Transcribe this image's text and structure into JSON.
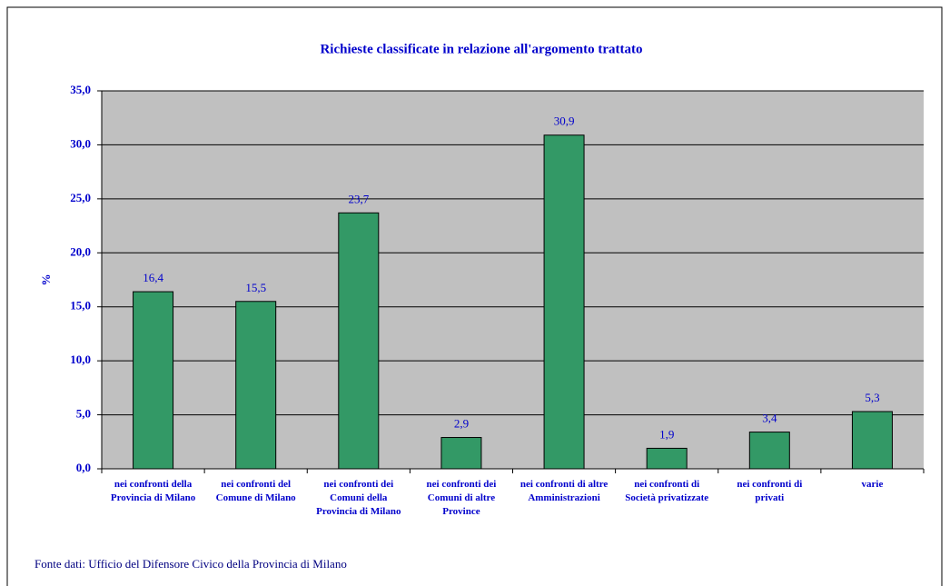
{
  "chart_data": {
    "type": "bar",
    "title": "Richieste classificate in relazione all'argomento trattato",
    "y_label": "%",
    "source": "Fonte dati: Ufficio del Difensore Civico della Provincia di Milano",
    "categories": [
      "nei confronti della Provincia di Milano",
      "nei confronti del Comune di Milano",
      "nei confronti dei Comuni della Provincia di Milano",
      "nei confronti dei Comuni di altre Province",
      "nei confronti di altre Amministrazioni",
      "nei confronti di Società privatizzate",
      "nei confronti di privati",
      "varie"
    ],
    "values": [
      16.4,
      15.5,
      23.7,
      2.9,
      30.9,
      1.9,
      3.4,
      5.3
    ],
    "value_labels": [
      "16,4",
      "15,5",
      "23,7",
      "2,9",
      "30,9",
      "1,9",
      "3,4",
      "5,3"
    ],
    "color": "#339966",
    "ylim": [
      0,
      35
    ],
    "yticks": [
      {
        "value": 0,
        "label": "0,0"
      },
      {
        "value": 5,
        "label": "5,0"
      },
      {
        "value": 10,
        "label": "10,0"
      },
      {
        "value": 15,
        "label": "15,0"
      },
      {
        "value": 20,
        "label": "20,0"
      },
      {
        "value": 25,
        "label": "25,0"
      },
      {
        "value": 30,
        "label": "30,0"
      },
      {
        "value": 35,
        "label": "35,0"
      }
    ],
    "grid": true
  }
}
